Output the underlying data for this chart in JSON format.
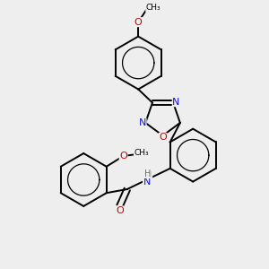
{
  "bg_color": "#eeeeee",
  "bond_color": "#000000",
  "bond_width": 1.4,
  "atom_colors": {
    "N": "#1414cc",
    "O": "#cc0000",
    "H": "#6e6e6e"
  },
  "font_size": 8,
  "fig_size": [
    3.0,
    3.0
  ],
  "dpi": 100,
  "xlim": [
    -3.2,
    3.2
  ],
  "ylim": [
    -3.5,
    3.5
  ]
}
